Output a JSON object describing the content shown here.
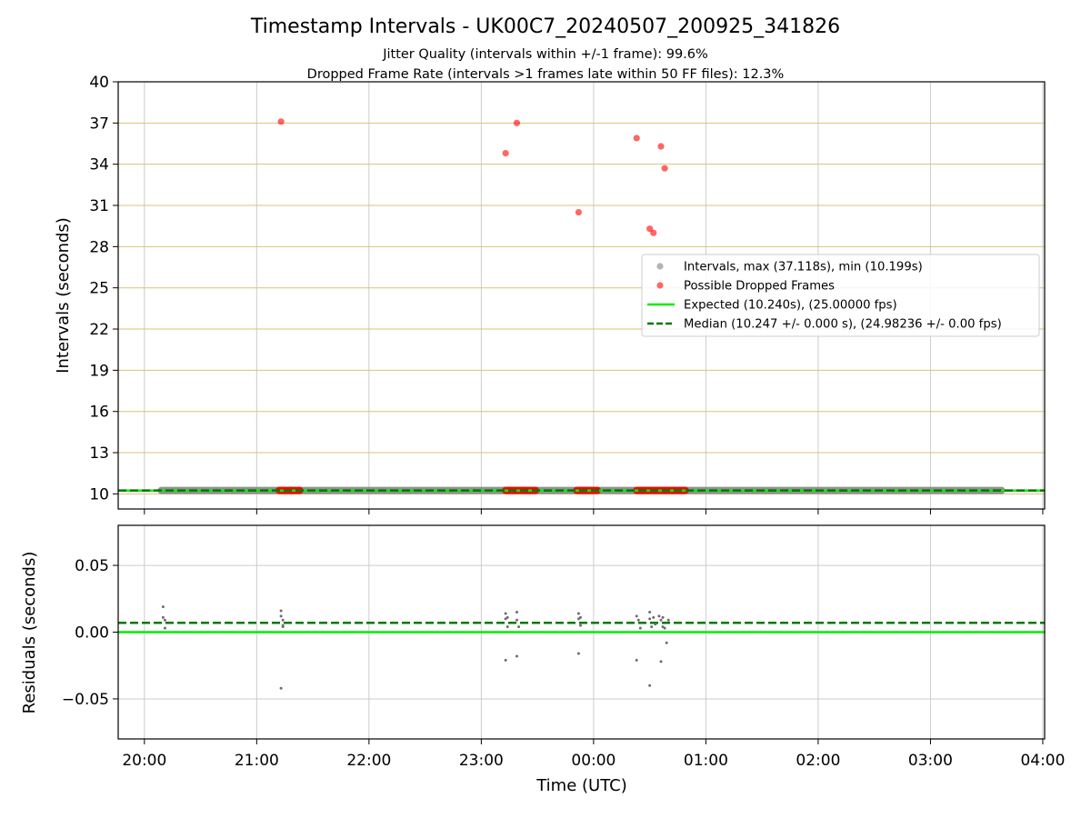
{
  "chart_data": {
    "type": "scatter",
    "title": "Timestamp Intervals - UK00C7_20240507_200925_341826",
    "subtitle_lines": [
      "Jitter Quality (intervals within +/-1 frame): 99.6%",
      "Dropped Frame Rate (intervals >1 frames late within 50 FF files): 12.3%"
    ],
    "xlabel": "Time (UTC)",
    "x_axis_type": "time",
    "xlim": [
      "19:46",
      "04:01"
    ],
    "xticks": [
      "20:00",
      "21:00",
      "22:00",
      "23:00",
      "00:00",
      "01:00",
      "02:00",
      "03:00",
      "04:00"
    ],
    "grid": true,
    "legend_position": "center-right (upper panel)",
    "colors": {
      "intervals": "#808080",
      "dropped": "#ff0000",
      "expected": "#00ee00",
      "median": "#007700",
      "hgrid_upper": "#d8c27a",
      "vgrid": "#cccccc"
    },
    "panels": [
      {
        "ylabel": "Intervals (seconds)",
        "ylim": [
          8.9,
          40
        ],
        "yticks": [
          10,
          13,
          16,
          19,
          22,
          25,
          28,
          31,
          34,
          37,
          40
        ],
        "legend": [
          {
            "kind": "marker",
            "color": "#808080",
            "label": "Intervals, max (37.118s), min (10.199s)"
          },
          {
            "kind": "marker",
            "color": "#ff0000",
            "label": "Possible Dropped Frames"
          },
          {
            "kind": "solid",
            "color": "#00ee00",
            "label": "Expected (10.240s), (25.00000 fps)"
          },
          {
            "kind": "dashed",
            "color": "#007700",
            "label": "Median (10.247 +/- 0.000 s), (24.98236 +/- 0.00 fps)"
          }
        ],
        "series": [
          {
            "name": "Intervals, max (37.118s), min (10.199s)",
            "style": "band",
            "x": [
              "20:09",
              "03:38"
            ],
            "y": [
              10.247,
              10.247
            ]
          },
          {
            "name": "Possible Dropped Frames",
            "style": "scatter",
            "x": [
              "21:13",
              "23:13",
              "23:19",
              "23:52",
              "00:23",
              "00:30",
              "00:32",
              "00:36",
              "00:38"
            ],
            "y": [
              37.1,
              34.8,
              37.0,
              30.5,
              35.9,
              29.3,
              29.0,
              35.3,
              33.7
            ]
          },
          {
            "name": "Possible Dropped Frames (near baseline)",
            "style": "band",
            "ranges": [
              [
                "21:12",
                "21:23"
              ],
              [
                "23:13",
                "23:29"
              ],
              [
                "23:51",
                "00:02"
              ],
              [
                "00:23",
                "00:49"
              ]
            ],
            "y": 10.25
          },
          {
            "name": "Expected (10.240s), (25.00000 fps)",
            "style": "line",
            "y": 10.24
          },
          {
            "name": "Median (10.247 +/- 0.000 s), (24.98236 +/- 0.00 fps)",
            "style": "dashed",
            "y": 10.247
          }
        ]
      },
      {
        "ylabel": "Residuals (seconds)",
        "ylim": [
          -0.08,
          0.08
        ],
        "yticks": [
          0.05,
          0.0,
          -0.05
        ],
        "ytick_labels": [
          "0.05",
          "0.00",
          "−0.05"
        ],
        "series": [
          {
            "name": "Expected",
            "style": "line",
            "y": 0.0
          },
          {
            "name": "Median",
            "style": "dashed",
            "y": 0.007
          },
          {
            "name": "Residuals",
            "style": "scatter",
            "x": [
              "20:10",
              "20:10",
              "20:11",
              "20:11",
              "21:13",
              "21:13",
              "21:14",
              "21:14",
              "21:14",
              "23:13",
              "23:13",
              "23:14",
              "23:14",
              "23:19",
              "23:19",
              "23:20",
              "23:52",
              "23:52",
              "23:53",
              "23:53",
              "00:23",
              "00:24",
              "00:25",
              "00:30",
              "00:30",
              "00:31",
              "00:32",
              "00:33",
              "00:35",
              "00:36",
              "00:37",
              "00:37",
              "00:38",
              "00:39",
              "00:40",
              "21:13",
              "23:13",
              "23:19",
              "23:52",
              "00:23",
              "00:30",
              "00:36"
            ],
            "y": [
              0.019,
              0.011,
              0.003,
              0.009,
              0.016,
              0.012,
              0.004,
              0.009,
              0.005,
              0.014,
              0.01,
              0.004,
              0.011,
              0.015,
              0.009,
              0.004,
              0.014,
              0.01,
              0.005,
              0.011,
              0.012,
              0.009,
              0.003,
              0.015,
              0.01,
              0.004,
              0.011,
              0.006,
              0.012,
              0.009,
              0.004,
              0.011,
              0.003,
              -0.008,
              0.009,
              -0.042,
              -0.021,
              -0.018,
              -0.016,
              -0.021,
              -0.04,
              -0.022
            ]
          }
        ]
      }
    ]
  }
}
